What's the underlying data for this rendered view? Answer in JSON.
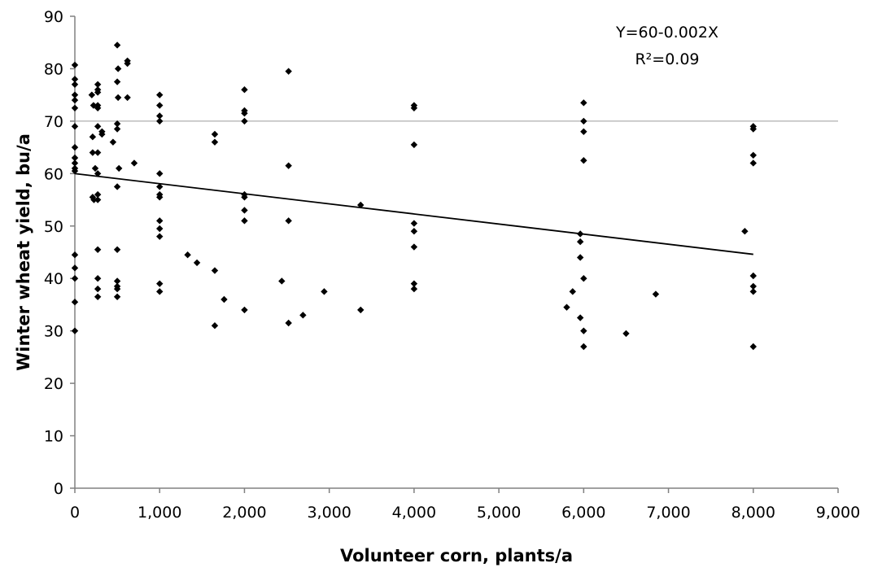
{
  "chart_data": {
    "type": "scatter",
    "title": "",
    "xlabel": "Volunteer corn, plants/a",
    "ylabel": "Winter wheat yield, bu/a",
    "xlim": [
      0,
      9000
    ],
    "ylim": [
      0,
      90
    ],
    "xticks": [
      0,
      1000,
      2000,
      3000,
      4000,
      5000,
      6000,
      7000,
      8000,
      9000
    ],
    "xtick_labels": [
      "0",
      "1,000",
      "2,000",
      "3,000",
      "4,000",
      "5,000",
      "6,000",
      "7,000",
      "8,000",
      "9,000"
    ],
    "yticks": [
      0,
      10,
      20,
      30,
      40,
      50,
      60,
      70,
      80,
      90
    ],
    "ytick_labels": [
      "0",
      "10",
      "20",
      "30",
      "40",
      "50",
      "60",
      "70",
      "80",
      "90"
    ],
    "grid": "horizontal line at 70 only",
    "legend": "none",
    "marker_color": "#000000",
    "reference_line_y": 70,
    "annotations": [
      "Y=60-0.002X",
      "R²=0.09"
    ],
    "trendline": {
      "x": [
        0,
        8000
      ],
      "y": [
        60,
        44.6
      ]
    },
    "points": [
      [
        0,
        80.7
      ],
      [
        0,
        78
      ],
      [
        0,
        77
      ],
      [
        0,
        75
      ],
      [
        0,
        74
      ],
      [
        0,
        72.5
      ],
      [
        0,
        69
      ],
      [
        0,
        65
      ],
      [
        0,
        63
      ],
      [
        0,
        62
      ],
      [
        0,
        61
      ],
      [
        0,
        60.5
      ],
      [
        0,
        44.5
      ],
      [
        0,
        42
      ],
      [
        0,
        40
      ],
      [
        0,
        35.5
      ],
      [
        0,
        30
      ],
      [
        200,
        75
      ],
      [
        220,
        73
      ],
      [
        210,
        67
      ],
      [
        210,
        64
      ],
      [
        240,
        61
      ],
      [
        210,
        55.5
      ],
      [
        225,
        55
      ],
      [
        270,
        77
      ],
      [
        270,
        76
      ],
      [
        270,
        75.5
      ],
      [
        270,
        73
      ],
      [
        270,
        72.5
      ],
      [
        270,
        69
      ],
      [
        270,
        64
      ],
      [
        270,
        60
      ],
      [
        270,
        56
      ],
      [
        270,
        55
      ],
      [
        270,
        45.5
      ],
      [
        270,
        40
      ],
      [
        270,
        38
      ],
      [
        270,
        36.5
      ],
      [
        320,
        68
      ],
      [
        320,
        67.5
      ],
      [
        450,
        66
      ],
      [
        500,
        84.5
      ],
      [
        510,
        80
      ],
      [
        500,
        77.5
      ],
      [
        510,
        74.5
      ],
      [
        500,
        69.5
      ],
      [
        500,
        68.5
      ],
      [
        520,
        61
      ],
      [
        500,
        57.5
      ],
      [
        500,
        45.5
      ],
      [
        500,
        39.5
      ],
      [
        500,
        38.5
      ],
      [
        500,
        38
      ],
      [
        500,
        36.5
      ],
      [
        620,
        81.5
      ],
      [
        620,
        81
      ],
      [
        620,
        74.5
      ],
      [
        700,
        62
      ],
      [
        1000,
        75
      ],
      [
        1000,
        73
      ],
      [
        1000,
        71
      ],
      [
        1000,
        70
      ],
      [
        1000,
        60
      ],
      [
        1000,
        57.5
      ],
      [
        1000,
        56
      ],
      [
        1000,
        55.5
      ],
      [
        1000,
        51
      ],
      [
        1000,
        49.5
      ],
      [
        1000,
        48
      ],
      [
        1000,
        39
      ],
      [
        1000,
        37.5
      ],
      [
        1330,
        44.5
      ],
      [
        1440,
        43
      ],
      [
        1650,
        67.5
      ],
      [
        1650,
        66
      ],
      [
        1650,
        41.5
      ],
      [
        1650,
        31
      ],
      [
        1760,
        36
      ],
      [
        2000,
        76
      ],
      [
        2000,
        72
      ],
      [
        2000,
        71.5
      ],
      [
        2000,
        70
      ],
      [
        2000,
        56
      ],
      [
        2000,
        55.5
      ],
      [
        2000,
        53
      ],
      [
        2000,
        51
      ],
      [
        2000,
        34
      ],
      [
        2440,
        39.5
      ],
      [
        2520,
        79.5
      ],
      [
        2520,
        61.5
      ],
      [
        2520,
        51
      ],
      [
        2520,
        31.5
      ],
      [
        2690,
        33
      ],
      [
        2940,
        37.5
      ],
      [
        3370,
        54
      ],
      [
        3370,
        34
      ],
      [
        4000,
        73
      ],
      [
        4000,
        72.5
      ],
      [
        4000,
        65.5
      ],
      [
        4000,
        50.5
      ],
      [
        4000,
        49
      ],
      [
        4000,
        46
      ],
      [
        4000,
        39
      ],
      [
        4000,
        38
      ],
      [
        5800,
        34.5
      ],
      [
        5870,
        37.5
      ],
      [
        5960,
        48.5
      ],
      [
        5960,
        47
      ],
      [
        5960,
        44
      ],
      [
        5960,
        32.5
      ],
      [
        6000,
        73.5
      ],
      [
        6000,
        70
      ],
      [
        6000,
        68
      ],
      [
        6000,
        62.5
      ],
      [
        6000,
        40
      ],
      [
        6000,
        30
      ],
      [
        6000,
        27
      ],
      [
        6500,
        29.5
      ],
      [
        6850,
        37
      ],
      [
        7900,
        49
      ],
      [
        8000,
        69
      ],
      [
        8000,
        68.5
      ],
      [
        8000,
        63.5
      ],
      [
        8000,
        62
      ],
      [
        8000,
        40.5
      ],
      [
        8000,
        38.5
      ],
      [
        8000,
        37.5
      ],
      [
        8000,
        27
      ]
    ]
  }
}
